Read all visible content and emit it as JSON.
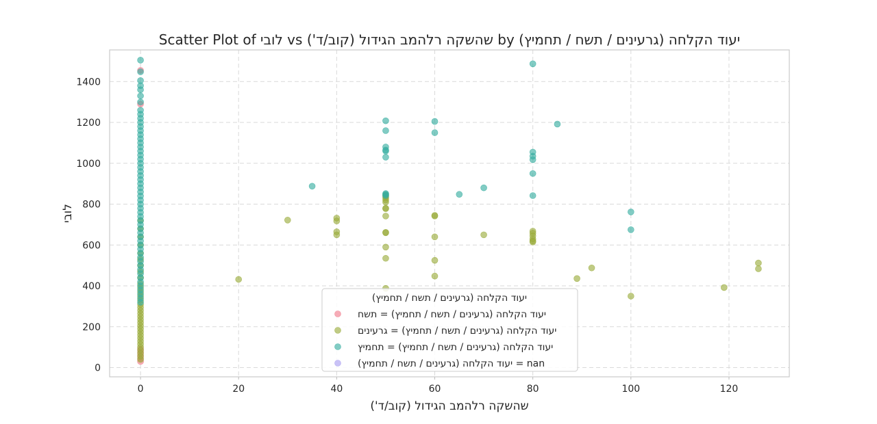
{
  "chart_data": {
    "type": "scatter",
    "title": "Scatter Plot of לובי vs שהשקה רלהמב הגידול (קוב/ד') by יעוד הקלחה (גרעינים / תשח / תחמיץ)",
    "xlabel": "שהשקה רלהמב הגידול (קוב/ד')",
    "ylabel": "לובי",
    "xlim": [
      -6.3,
      132.3
    ],
    "ylim": [
      -45,
      1555
    ],
    "xticks": [
      0,
      20,
      40,
      60,
      80,
      100,
      120
    ],
    "yticks": [
      0,
      200,
      400,
      600,
      800,
      1000,
      1200,
      1400
    ],
    "grid": true,
    "legend": {
      "title": "יעוד הקלחה (גרעינים / תשח / תחמיץ)",
      "placement": "bottom-center"
    },
    "colors": {
      "תשח": "#f0798a",
      "גרעינים": "#9aab3a",
      "תחמיץ": "#35ada0",
      "nan": "#a89cf0"
    },
    "series": [
      {
        "name": "יעוד הקלחה (גרעינים / תשח / תחמיץ) = תשח",
        "key": "תשח",
        "points": [
          [
            0,
            30
          ],
          [
            0,
            45
          ],
          [
            0,
            60
          ],
          [
            0,
            75
          ],
          [
            0,
            90
          ],
          [
            0,
            1290
          ],
          [
            0,
            1455
          ]
        ]
      },
      {
        "name": "יעוד הקלחה (גרעינים / תשח / תחמיץ) = גרעינים",
        "key": "גרעינים",
        "points": [
          [
            0,
            40
          ],
          [
            0,
            55
          ],
          [
            0,
            70
          ],
          [
            0,
            85
          ],
          [
            0,
            100
          ],
          [
            0,
            115
          ],
          [
            0,
            130
          ],
          [
            0,
            145
          ],
          [
            0,
            160
          ],
          [
            0,
            175
          ],
          [
            0,
            190
          ],
          [
            0,
            205
          ],
          [
            0,
            220
          ],
          [
            0,
            235
          ],
          [
            0,
            250
          ],
          [
            0,
            265
          ],
          [
            0,
            280
          ],
          [
            0,
            295
          ],
          [
            0,
            310
          ],
          [
            0,
            330
          ],
          [
            0,
            350
          ],
          [
            0,
            370
          ],
          [
            0,
            390
          ],
          [
            0,
            410
          ],
          [
            0,
            440
          ],
          [
            0,
            470
          ],
          [
            0,
            500
          ],
          [
            0,
            530
          ],
          [
            0,
            560
          ],
          [
            0,
            600
          ],
          [
            0,
            640
          ],
          [
            0,
            680
          ],
          [
            0,
            720
          ],
          [
            20,
            432
          ],
          [
            30,
            722
          ],
          [
            40,
            732
          ],
          [
            40,
            718
          ],
          [
            40,
            665
          ],
          [
            40,
            650
          ],
          [
            50,
            845
          ],
          [
            50,
            838
          ],
          [
            50,
            830
          ],
          [
            50,
            820
          ],
          [
            50,
            810
          ],
          [
            50,
            780
          ],
          [
            50,
            778
          ],
          [
            50,
            742
          ],
          [
            50,
            662
          ],
          [
            50,
            660
          ],
          [
            50,
            590
          ],
          [
            50,
            535
          ],
          [
            50,
            388
          ],
          [
            60,
            745
          ],
          [
            60,
            742
          ],
          [
            60,
            640
          ],
          [
            60,
            525
          ],
          [
            60,
            448
          ],
          [
            70,
            650
          ],
          [
            80,
            668
          ],
          [
            80,
            658
          ],
          [
            80,
            645
          ],
          [
            80,
            630
          ],
          [
            80,
            620
          ],
          [
            80,
            615
          ],
          [
            89,
            436
          ],
          [
            92,
            488
          ],
          [
            100,
            350
          ],
          [
            119,
            392
          ],
          [
            126,
            512
          ],
          [
            126,
            484
          ]
        ]
      },
      {
        "name": "יעוד הקלחה (גרעינים / תשח / תחמיץ) = תחמיץ",
        "key": "תחמיץ",
        "points": [
          [
            0,
            320
          ],
          [
            0,
            340
          ],
          [
            0,
            360
          ],
          [
            0,
            380
          ],
          [
            0,
            400
          ],
          [
            0,
            420
          ],
          [
            0,
            440
          ],
          [
            0,
            460
          ],
          [
            0,
            480
          ],
          [
            0,
            500
          ],
          [
            0,
            520
          ],
          [
            0,
            540
          ],
          [
            0,
            560
          ],
          [
            0,
            580
          ],
          [
            0,
            600
          ],
          [
            0,
            620
          ],
          [
            0,
            640
          ],
          [
            0,
            660
          ],
          [
            0,
            680
          ],
          [
            0,
            700
          ],
          [
            0,
            720
          ],
          [
            0,
            740
          ],
          [
            0,
            760
          ],
          [
            0,
            780
          ],
          [
            0,
            800
          ],
          [
            0,
            820
          ],
          [
            0,
            840
          ],
          [
            0,
            860
          ],
          [
            0,
            880
          ],
          [
            0,
            900
          ],
          [
            0,
            920
          ],
          [
            0,
            940
          ],
          [
            0,
            960
          ],
          [
            0,
            980
          ],
          [
            0,
            1000
          ],
          [
            0,
            1020
          ],
          [
            0,
            1040
          ],
          [
            0,
            1060
          ],
          [
            0,
            1080
          ],
          [
            0,
            1100
          ],
          [
            0,
            1120
          ],
          [
            0,
            1140
          ],
          [
            0,
            1160
          ],
          [
            0,
            1180
          ],
          [
            0,
            1200
          ],
          [
            0,
            1220
          ],
          [
            0,
            1240
          ],
          [
            0,
            1260
          ],
          [
            0,
            1300
          ],
          [
            0,
            1330
          ],
          [
            0,
            1360
          ],
          [
            0,
            1380
          ],
          [
            0,
            1405
          ],
          [
            0,
            1448
          ],
          [
            0,
            1505
          ],
          [
            35,
            888
          ],
          [
            50,
            1208
          ],
          [
            50,
            1160
          ],
          [
            50,
            1080
          ],
          [
            50,
            1065
          ],
          [
            50,
            1060
          ],
          [
            50,
            1030
          ],
          [
            50,
            852
          ],
          [
            50,
            848
          ],
          [
            50,
            842
          ],
          [
            60,
            1205
          ],
          [
            60,
            1150
          ],
          [
            65,
            848
          ],
          [
            70,
            880
          ],
          [
            80,
            1487
          ],
          [
            80,
            1055
          ],
          [
            80,
            1035
          ],
          [
            80,
            1018
          ],
          [
            80,
            950
          ],
          [
            80,
            842
          ],
          [
            85,
            1192
          ],
          [
            100,
            762
          ],
          [
            100,
            675
          ]
        ]
      },
      {
        "name": "יעוד הקלחה (גרעינים / תשח / תחמיץ) = nan",
        "key": "nan",
        "points": []
      }
    ]
  }
}
